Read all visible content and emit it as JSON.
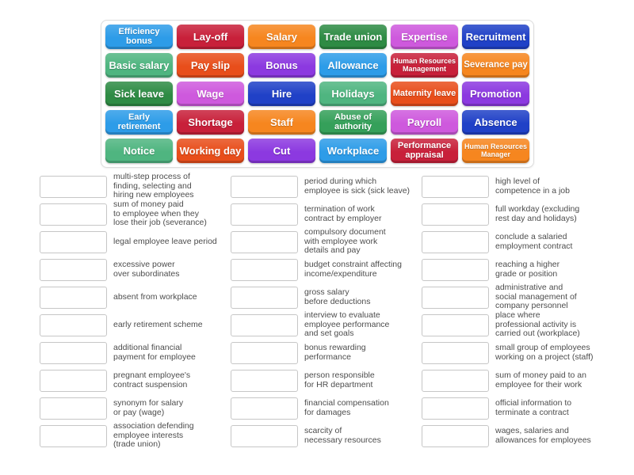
{
  "colors": {
    "blue": "#2d9ce8",
    "crimson": "#c8203a",
    "orange": "#f6861f",
    "forest_green": "#2e8b44",
    "orchid": "#ce59dd",
    "royal_blue": "#2041c7",
    "sea_green": "#4fb580",
    "orange_red": "#e84e1b",
    "purple": "#8c39e0",
    "green": "#35a05a",
    "definition_text": "#4d4d4d",
    "slot_border": "#c6c6c6",
    "panel_border": "#dcdcdc"
  },
  "board": {
    "tiles": [
      {
        "label": "Efficiency bonus",
        "color": "blue"
      },
      {
        "label": "Lay-off",
        "color": "crimson"
      },
      {
        "label": "Salary",
        "color": "orange"
      },
      {
        "label": "Trade union",
        "color": "forest_green"
      },
      {
        "label": "Expertise",
        "color": "orchid"
      },
      {
        "label": "Recruitment",
        "color": "royal_blue"
      },
      {
        "label": "Basic salary",
        "color": "sea_green"
      },
      {
        "label": "Pay slip",
        "color": "orange_red"
      },
      {
        "label": "Bonus",
        "color": "purple"
      },
      {
        "label": "Allowance",
        "color": "blue"
      },
      {
        "label": "Human Resources Management",
        "color": "crimson"
      },
      {
        "label": "Severance pay",
        "color": "orange"
      },
      {
        "label": "Sick leave",
        "color": "forest_green"
      },
      {
        "label": "Wage",
        "color": "orchid"
      },
      {
        "label": "Hire",
        "color": "royal_blue"
      },
      {
        "label": "Holidays",
        "color": "sea_green"
      },
      {
        "label": "Maternity leave",
        "color": "orange_red"
      },
      {
        "label": "Promotion",
        "color": "purple"
      },
      {
        "label": "Early retirement",
        "color": "blue"
      },
      {
        "label": "Shortage",
        "color": "crimson"
      },
      {
        "label": "Staff",
        "color": "orange"
      },
      {
        "label": "Abuse of authority",
        "color": "green"
      },
      {
        "label": "Payroll",
        "color": "orchid"
      },
      {
        "label": "Absence",
        "color": "royal_blue"
      },
      {
        "label": "Notice",
        "color": "sea_green"
      },
      {
        "label": "Working day",
        "color": "orange_red"
      },
      {
        "label": "Cut",
        "color": "purple"
      },
      {
        "label": "Workplace",
        "color": "blue"
      },
      {
        "label": "Performance appraisal",
        "color": "crimson"
      },
      {
        "label": "Human Resources Manager",
        "color": "orange"
      }
    ]
  },
  "definitions": {
    "columns": [
      {
        "items": [
          "multi-step process of\nfinding, selecting and\nhiring new employees",
          "sum of money paid\nto employee when they\nlose their job (severance)",
          "legal employee leave period",
          "excessive power\nover subordinates",
          "absent from workplace",
          "early retirement scheme",
          "additional financial\npayment for employee",
          "pregnant employee's\ncontract suspension",
          "synonym for salary\nor pay (wage)",
          "association defending\nemployee interests\n(trade union)"
        ]
      },
      {
        "items": [
          "period during which\nemployee is sick (sick leave)",
          "termination of work\ncontract by employer",
          "compulsory document\nwith employee work\ndetails and pay",
          "budget constraint affecting\nincome/expenditure",
          "gross salary\nbefore deductions",
          "interview to evaluate\nemployee performance\nand set goals",
          "bonus rewarding\nperformance",
          "person responsible\nfor HR department",
          "financial compensation\nfor damages",
          "scarcity of\nnecessary resources"
        ]
      },
      {
        "items": [
          "high level of\ncompetence in a job",
          "full workday (excluding\nrest day and holidays)",
          "conclude a salaried\nemployment contract",
          "reaching a higher\ngrade or position",
          "administrative and\nsocial management of\ncompany personnel",
          "place where\nprofessional activity is\ncarried out (workplace)",
          "small group of employees\nworking on a project (staff)",
          "sum of money paid to an\nemployee for their work",
          "official information to\nterminate a contract",
          "wages, salaries and\nallowances for employees"
        ]
      }
    ]
  }
}
